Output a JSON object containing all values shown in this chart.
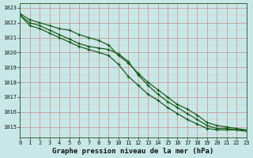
{
  "title": "Graphe pression niveau de la mer (hPa)",
  "background_color": "#c8e8e8",
  "plot_bg_color": "#c8e8e8",
  "grid_major_color": "#cc9999",
  "grid_minor_color": "#ddbbbb",
  "line_color": "#1a5c1a",
  "xlim": [
    0,
    23
  ],
  "ylim": [
    1014.3,
    1023.3
  ],
  "yticks": [
    1015,
    1016,
    1017,
    1018,
    1019,
    1020,
    1021,
    1022,
    1023
  ],
  "xticks": [
    0,
    1,
    2,
    3,
    4,
    5,
    6,
    7,
    8,
    9,
    10,
    11,
    12,
    13,
    14,
    15,
    16,
    17,
    18,
    19,
    20,
    21,
    22,
    23
  ],
  "line1": {
    "x": [
      0,
      1,
      2,
      3,
      4,
      5,
      6,
      7,
      8,
      9,
      10,
      11,
      12,
      13,
      14,
      15,
      16,
      17,
      18,
      19,
      20,
      21,
      22,
      23
    ],
    "y": [
      1022.6,
      1022.2,
      1022.0,
      1021.8,
      1021.6,
      1021.5,
      1021.2,
      1021.0,
      1020.8,
      1020.5,
      1019.8,
      1019.3,
      1018.6,
      1018.0,
      1017.5,
      1017.0,
      1016.5,
      1016.2,
      1015.8,
      1015.3,
      1015.1,
      1015.0,
      1014.9,
      1014.8
    ]
  },
  "line2": {
    "x": [
      0,
      1,
      2,
      3,
      4,
      5,
      6,
      7,
      8,
      9,
      10,
      11,
      12,
      13,
      14,
      15,
      16,
      17,
      18,
      19,
      20,
      21,
      22,
      23
    ],
    "y": [
      1022.5,
      1022.0,
      1021.8,
      1021.5,
      1021.2,
      1020.9,
      1020.6,
      1020.4,
      1020.3,
      1020.2,
      1019.9,
      1019.4,
      1018.5,
      1017.8,
      1017.2,
      1016.7,
      1016.3,
      1015.9,
      1015.5,
      1015.1,
      1014.9,
      1014.9,
      1014.8,
      1014.8
    ]
  },
  "line3": {
    "x": [
      0,
      1,
      2,
      3,
      4,
      5,
      6,
      7,
      8,
      9,
      10,
      11,
      12,
      13,
      14,
      15,
      16,
      17,
      18,
      19,
      20,
      21,
      22,
      23
    ],
    "y": [
      1022.5,
      1021.8,
      1021.6,
      1021.3,
      1021.0,
      1020.7,
      1020.4,
      1020.2,
      1020.0,
      1019.8,
      1019.2,
      1018.4,
      1017.8,
      1017.2,
      1016.8,
      1016.3,
      1015.9,
      1015.5,
      1015.2,
      1014.9,
      1014.8,
      1014.8,
      1014.8,
      1014.7
    ]
  },
  "tick_fontsize": 5,
  "xlabel_fontsize": 6.5
}
